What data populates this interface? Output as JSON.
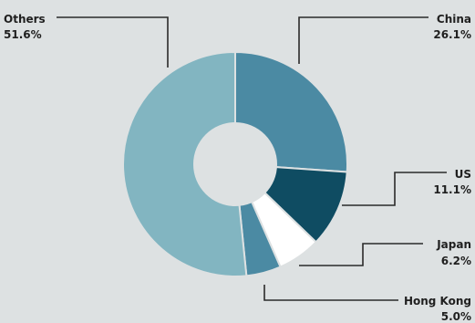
{
  "chart_data": {
    "type": "pie",
    "donut": true,
    "start_angle_deg": 0,
    "direction": "clockwise",
    "slices": [
      {
        "label": "China",
        "value_label": "26.1%",
        "value": 26.1,
        "color": "#4b8aa3"
      },
      {
        "label": "US",
        "value_label": "11.1%",
        "value": 11.1,
        "color": "#0f4c62"
      },
      {
        "label": "Japan",
        "value_label": "6.2%",
        "value": 6.2,
        "color": "#ffffff"
      },
      {
        "label": "Hong Kong",
        "value_label": "5.0%",
        "value": 5.0,
        "color": "#4b8aa3"
      },
      {
        "label": "Others",
        "value_label": "51.6%",
        "value": 51.6,
        "color": "#82b5c1"
      }
    ],
    "separator_color": "#dde1e2",
    "legend": "none",
    "grid": false
  }
}
